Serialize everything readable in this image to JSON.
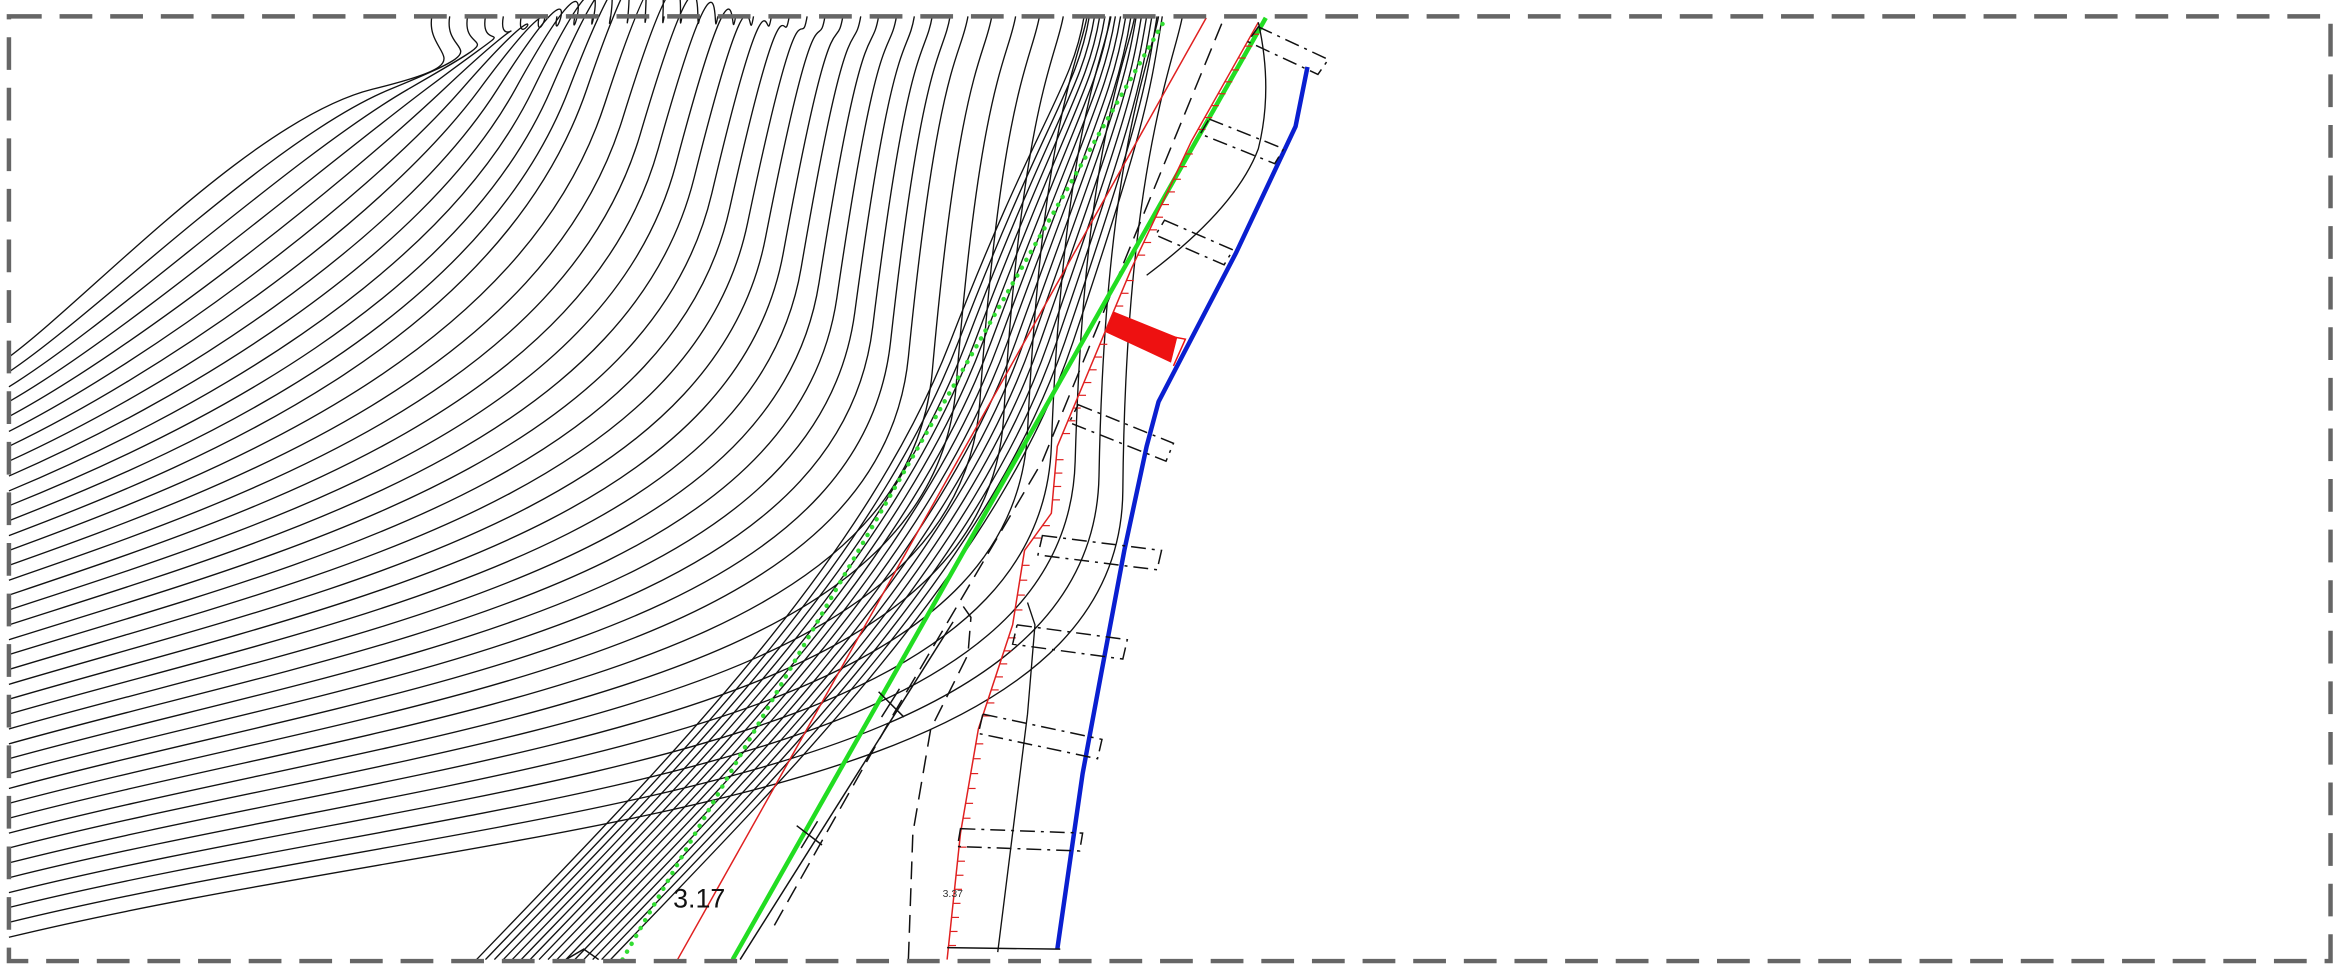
{
  "labels": [
    {
      "text": "3.17"
    },
    {
      "text": "3.37"
    }
  ]
}
